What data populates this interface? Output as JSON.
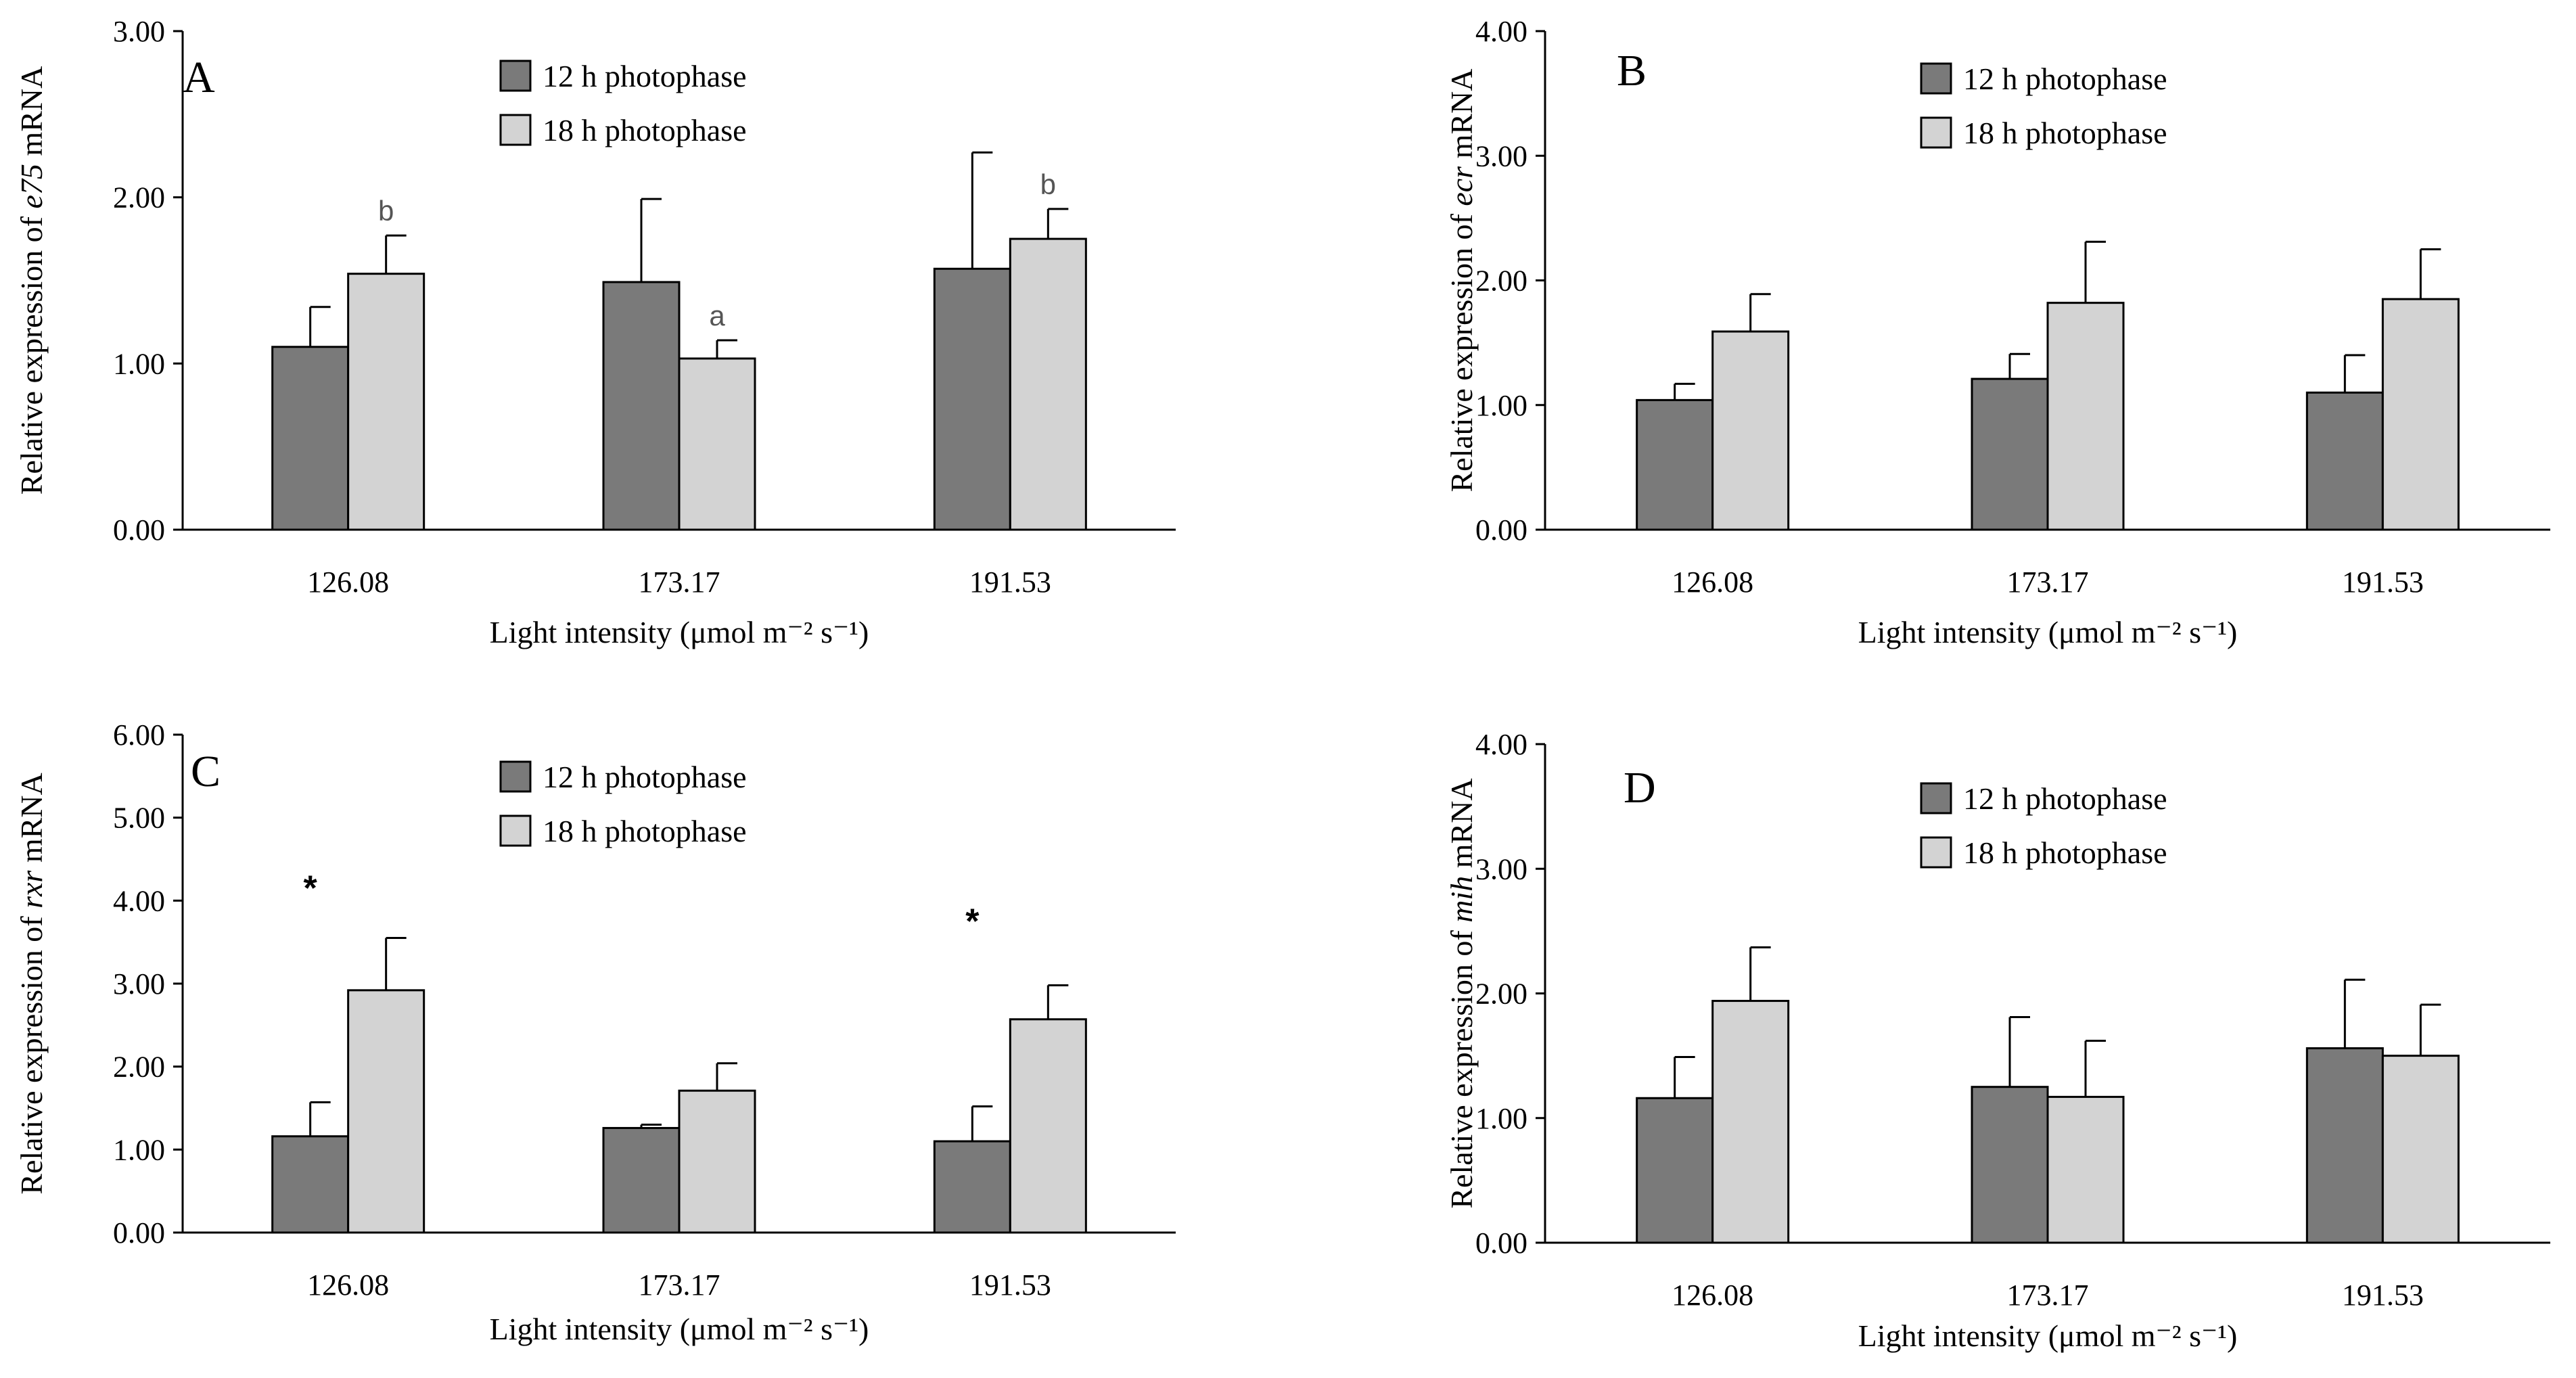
{
  "colors": {
    "series_12h": "#7a7a7a",
    "series_18h": "#d3d3d3",
    "stroke": "#000000",
    "sig_letter": "#555555"
  },
  "chart_data": [
    {
      "panel": "A",
      "type": "bar",
      "ylabel_prefix": "Relative expression of ",
      "gene": "e75",
      "ylabel_suffix": " mRNA",
      "xlabel": "Light intensity (μmol m⁻² s⁻¹)",
      "categories": [
        "126.08",
        "173.17",
        "191.53"
      ],
      "ylim": [
        0,
        3
      ],
      "yticks": [
        "0.00",
        "1.00",
        "2.00",
        "3.00"
      ],
      "ytick_values": [
        0,
        1,
        2,
        3
      ],
      "series": [
        {
          "name": "12 h photophase",
          "values": [
            1.1,
            1.49,
            1.57
          ],
          "errors": [
            0.24,
            0.5,
            0.7
          ]
        },
        {
          "name": "18 h photophase",
          "values": [
            1.54,
            1.03,
            1.75
          ],
          "errors": [
            0.23,
            0.11,
            0.18
          ]
        }
      ],
      "annotations": [
        {
          "text": "b",
          "series": 1,
          "category": 0,
          "kind": "letter"
        },
        {
          "text": "a",
          "series": 1,
          "category": 1,
          "kind": "letter"
        },
        {
          "text": "b",
          "series": 1,
          "category": 2,
          "kind": "letter"
        }
      ]
    },
    {
      "panel": "B",
      "type": "bar",
      "ylabel_prefix": "Relative expression of ",
      "gene": "ecr",
      "ylabel_suffix": " mRNA",
      "xlabel": "Light intensity (μmol m⁻² s⁻¹)",
      "categories": [
        "126.08",
        "173.17",
        "191.53"
      ],
      "ylim": [
        0,
        4
      ],
      "yticks": [
        "0.00",
        "1.00",
        "2.00",
        "3.00",
        "4.00"
      ],
      "ytick_values": [
        0,
        1,
        2,
        3,
        4
      ],
      "series": [
        {
          "name": "12 h photophase",
          "values": [
            1.04,
            1.21,
            1.1
          ],
          "errors": [
            0.13,
            0.2,
            0.3
          ]
        },
        {
          "name": "18 h photophase",
          "values": [
            1.59,
            1.82,
            1.85
          ],
          "errors": [
            0.3,
            0.49,
            0.4
          ]
        }
      ],
      "annotations": []
    },
    {
      "panel": "C",
      "type": "bar",
      "ylabel_prefix": "Relative expression of ",
      "gene": "rxr",
      "ylabel_suffix": " mRNA",
      "xlabel": "Light intensity (μmol m⁻² s⁻¹)",
      "categories": [
        "126.08",
        "173.17",
        "191.53"
      ],
      "ylim": [
        0,
        6
      ],
      "yticks": [
        "0.00",
        "1.00",
        "2.00",
        "3.00",
        "4.00",
        "5.00",
        "6.00"
      ],
      "ytick_values": [
        0,
        1,
        2,
        3,
        4,
        5,
        6
      ],
      "series": [
        {
          "name": "12 h photophase",
          "values": [
            1.16,
            1.26,
            1.1
          ],
          "errors": [
            0.41,
            0.04,
            0.42
          ]
        },
        {
          "name": "18 h photophase",
          "values": [
            2.92,
            1.71,
            2.57
          ],
          "errors": [
            0.63,
            0.33,
            0.41
          ]
        }
      ],
      "annotations": [
        {
          "text": "*",
          "category": 0,
          "kind": "star",
          "y": 4.25
        },
        {
          "text": "*",
          "category": 2,
          "kind": "star",
          "y": 3.85
        }
      ]
    },
    {
      "panel": "D",
      "type": "bar",
      "ylabel_prefix": "Relative expression of ",
      "gene": "mih",
      "ylabel_suffix": " mRNA",
      "xlabel": "Light intensity (μmol m⁻² s⁻¹)",
      "categories": [
        "126.08",
        "173.17",
        "191.53"
      ],
      "ylim": [
        0,
        4
      ],
      "yticks": [
        "0.00",
        "1.00",
        "2.00",
        "3.00",
        "4.00"
      ],
      "ytick_values": [
        0,
        1,
        2,
        3,
        4
      ],
      "series": [
        {
          "name": "12 h photophase",
          "values": [
            1.16,
            1.25,
            1.56
          ],
          "errors": [
            0.33,
            0.56,
            0.55
          ]
        },
        {
          "name": "18 h photophase",
          "values": [
            1.94,
            1.17,
            1.5
          ],
          "errors": [
            0.43,
            0.45,
            0.41
          ]
        }
      ],
      "annotations": []
    }
  ]
}
